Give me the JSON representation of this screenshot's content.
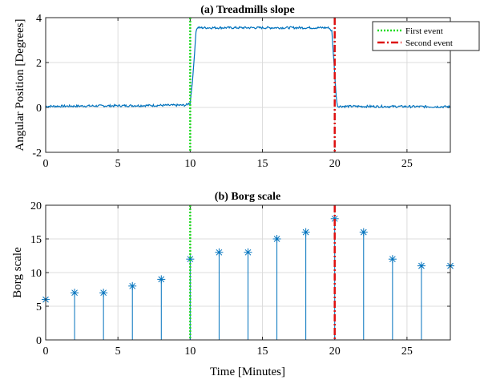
{
  "chart_data": [
    {
      "type": "line",
      "title": "(a) Treadmills slope",
      "xlabel": "",
      "ylabel": "Angular Position [Degrees]",
      "xlim": [
        0,
        28
      ],
      "ylim": [
        -2,
        4
      ],
      "xticks": [
        0,
        5,
        10,
        15,
        20,
        25
      ],
      "yticks": [
        -2,
        0,
        2,
        4
      ],
      "grid": true,
      "legend": "top-right",
      "series": [
        {
          "color": "#0072bd",
          "x": [
            0,
            9.7,
            10.0,
            10.2,
            10.4,
            10.5,
            19.6,
            19.8,
            20.0,
            20.1,
            20.2,
            28
          ],
          "y": [
            0.05,
            0.1,
            0.2,
            1.5,
            3.4,
            3.55,
            3.55,
            3.4,
            1.5,
            0.5,
            0.05,
            0.03
          ],
          "noise": 0.05
        }
      ],
      "events": [
        {
          "name": "First event",
          "x": 10,
          "color": "#22dd22",
          "style": "dotted"
        },
        {
          "name": "Second event",
          "x": 20,
          "color": "#dd1111",
          "style": "dashdot"
        }
      ]
    },
    {
      "type": "stem",
      "title": "(b) Borg scale",
      "xlabel": "Time [Minutes]",
      "ylabel": "Borg scale",
      "xlim": [
        0,
        28
      ],
      "ylim": [
        0,
        20
      ],
      "xticks": [
        0,
        5,
        10,
        15,
        20,
        25
      ],
      "yticks": [
        0,
        5,
        10,
        15,
        20
      ],
      "grid": true,
      "marker": "*",
      "color": "#0072bd",
      "x": [
        0,
        2,
        4,
        6,
        8,
        10,
        12,
        14,
        16,
        18,
        20,
        22,
        24,
        26,
        28
      ],
      "y": [
        6,
        7,
        7,
        8,
        9,
        12,
        13,
        13,
        15,
        16,
        18,
        16,
        12,
        11,
        11
      ],
      "events": [
        {
          "x": 10,
          "color": "#22dd22",
          "style": "dotted"
        },
        {
          "x": 20,
          "color": "#dd1111",
          "style": "dashdot"
        }
      ]
    }
  ]
}
